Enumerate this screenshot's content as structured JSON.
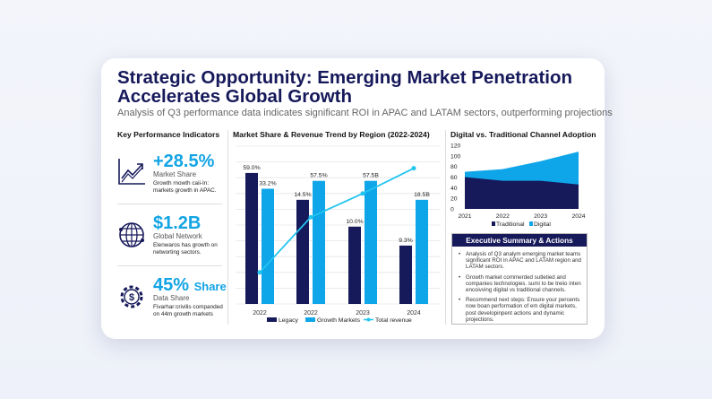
{
  "header": {
    "title": "Strategic Opportunity: Emerging Market Penetration Accelerates Global Growth",
    "subtitle": "Analysis of Q3 performance data indicates significant ROI in APAC and LATAM sectors, outperforming projections"
  },
  "kpi": {
    "heading": "Key Performance Indicators",
    "items": [
      {
        "icon": "trend-up-chart-icon",
        "value": "+28.5%",
        "label": "Market Share",
        "desc": "Growth rnowth caii-In: markets growth in APAC."
      },
      {
        "icon": "globe-network-icon",
        "value": "$1.2B",
        "label": "Global Network",
        "desc": "Elenwaros has growth on networting sectors."
      },
      {
        "icon": "gear-dollar-icon",
        "value": "45%",
        "value_suffix": "Share",
        "label": "Data Share",
        "desc": "Fivarhar:crivilis companded on 44m growth markets"
      }
    ]
  },
  "colors": {
    "navy": "#16195a",
    "blue": "#0ea5e9",
    "line": "#22c5f0"
  },
  "chart_data": [
    {
      "type": "bar",
      "title": "Market Share & Revenue Trend by Region (2022-2024)",
      "categories": [
        "2022",
        "2022",
        "2023",
        "2024"
      ],
      "ylim": [
        0,
        100
      ],
      "grid": true,
      "legend": "bottom",
      "series": [
        {
          "name": "Legacy",
          "kind": "bar",
          "values": [
            83,
            66,
            49,
            37
          ],
          "labels": [
            "59.0%",
            "14.5%",
            "10.0%",
            "9.3%"
          ]
        },
        {
          "name": "Growth Markets",
          "kind": "bar",
          "values": [
            73,
            78,
            78,
            66
          ],
          "labels": [
            "33.2%",
            "57.5%",
            "57.5B",
            "18.5B"
          ]
        },
        {
          "name": "Total revenue",
          "kind": "line",
          "values": [
            20,
            55,
            70,
            86
          ]
        }
      ]
    },
    {
      "type": "area",
      "title": "Digital vs. Traditional Channel Adoption",
      "categories": [
        "2021",
        "2022",
        "2023",
        "2024"
      ],
      "ylim": [
        0,
        120
      ],
      "yticks": [
        0,
        20,
        40,
        60,
        80,
        100,
        120
      ],
      "legend": "bottom",
      "stacked_total": true,
      "series": [
        {
          "name": "Traditional",
          "values": [
            60,
            53,
            53,
            46
          ]
        },
        {
          "name": "Digital",
          "values": [
            70,
            75,
            90,
            108
          ]
        }
      ]
    }
  ],
  "summary": {
    "heading": "Executive Summary & Actions",
    "items": [
      "Analysis of Q3 analym emerging market teams significant ROI in APAC and LATAM region and LATAM sectors.",
      "Growth market commerded sutletied and companies technologies. sumi to be treiio inten encoivving digital vs traditional channels.",
      "Recommend next steps: Ensure your percents now boan performation of em digital markets, post developinpent actions and dynamic projections."
    ]
  }
}
